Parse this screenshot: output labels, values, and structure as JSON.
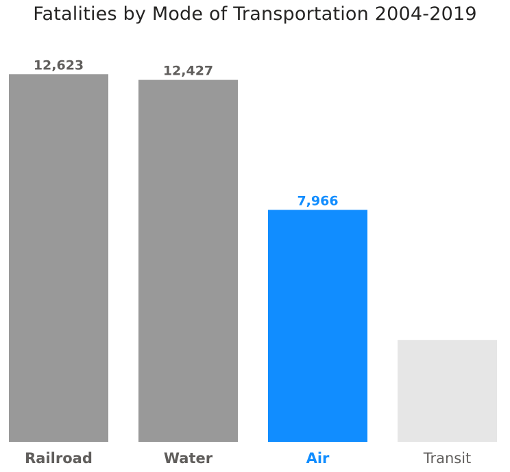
{
  "chart_data": {
    "type": "bar",
    "title": "Fatalities by Mode of Transportation 2004-2019",
    "categories": [
      "Railroad",
      "Water",
      "Air",
      "Transit"
    ],
    "values": [
      12623,
      12427,
      7966,
      3500
    ],
    "data_labels": [
      "12,623",
      "12,427",
      "7,966",
      ""
    ],
    "ylim": [
      0,
      13500
    ],
    "grid": false,
    "legend": "none",
    "bar_colors": [
      "#999999",
      "#999999",
      "#118DFF",
      "#E6E6E6"
    ],
    "label_colors": [
      "#605E5C",
      "#605E5C",
      "#118DFF",
      "#605E5C"
    ],
    "category_bold": [
      true,
      true,
      true,
      false
    ]
  }
}
